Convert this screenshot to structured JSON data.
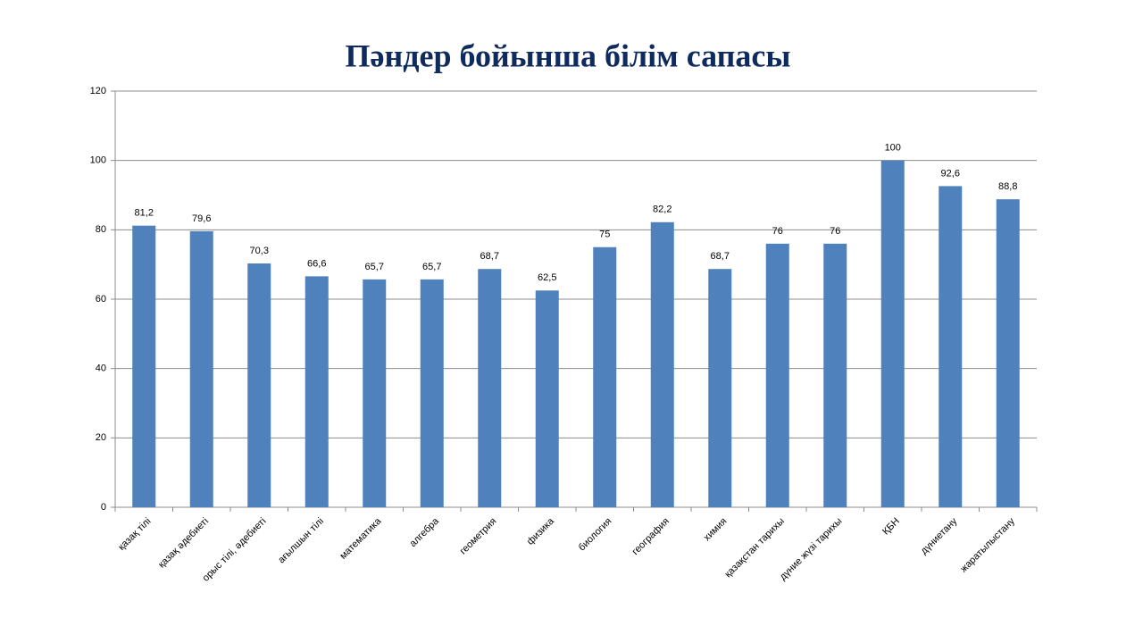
{
  "chart_data": {
    "type": "bar",
    "title": "Пәндер бойынша білім сапасы",
    "categories": [
      "қазақ тілі",
      "қазақ әдебиеті",
      "орыс тілі, әдебиеті",
      "ағылшын тілі",
      "математика",
      "алгебра",
      "геометрия",
      "физика",
      "биология",
      "география",
      "химия",
      "қазақстан тарихы",
      "дүние жүзі тарихы",
      "ҚБН",
      "дүниетану",
      "жаратылыстану"
    ],
    "values": [
      81.2,
      79.6,
      70.3,
      66.6,
      65.7,
      65.7,
      68.7,
      62.5,
      75,
      82.2,
      68.7,
      76,
      76,
      100,
      92.6,
      88.8
    ],
    "value_labels": [
      "81,2",
      "79,6",
      "70,3",
      "66,6",
      "65,7",
      "65,7",
      "68,7",
      "62,5",
      "75",
      "82,2",
      "68,7",
      "76",
      "76",
      "100",
      "92,6",
      "88,8"
    ],
    "color": "#4f81bd",
    "ylim": [
      0,
      120
    ],
    "yticks": [
      0,
      20,
      40,
      60,
      80,
      100,
      120
    ],
    "grid": true
  }
}
